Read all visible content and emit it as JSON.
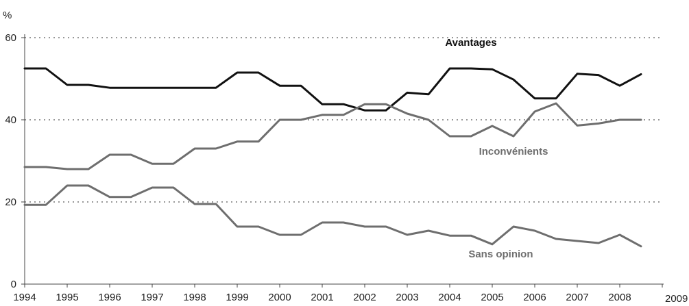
{
  "chart_data": {
    "type": "line",
    "y_unit_label": "%",
    "ylim": [
      0,
      60
    ],
    "y_ticks": [
      0,
      20,
      40,
      60
    ],
    "xlim": [
      1994,
      2009
    ],
    "x_tick_labels": [
      "1994",
      "1995",
      "1996",
      "1997",
      "1998",
      "1999",
      "2000",
      "2001",
      "2002",
      "2003",
      "2004",
      "2005",
      "2006",
      "2007",
      "2008",
      "2009"
    ],
    "grid": "horizontal dotted",
    "series": [
      {
        "name": "Avantages",
        "color": "#111111",
        "x": [
          1994,
          1994.5,
          1995,
          1995.5,
          1996,
          1996.5,
          1997,
          1997.5,
          1998,
          1998.5,
          1999,
          1999.5,
          2000,
          2000.5,
          2001,
          2001.5,
          2002,
          2002.5,
          2003,
          2003.5,
          2004,
          2004.5,
          2005,
          2005.5,
          2006,
          2006.5,
          2007,
          2007.5,
          2008,
          2008.5
        ],
        "values": [
          52.5,
          52.5,
          48.5,
          48.5,
          47.8,
          47.8,
          47.8,
          47.8,
          47.8,
          47.8,
          51.5,
          51.5,
          48.3,
          48.3,
          43.8,
          43.8,
          42.3,
          42.3,
          46.6,
          46.2,
          52.5,
          52.5,
          52.3,
          49.8,
          45.2,
          45.2,
          51.2,
          50.9,
          48.3,
          51.1
        ]
      },
      {
        "name": "Inconvénients",
        "color": "#6e6e6e",
        "x": [
          1994,
          1994.5,
          1995,
          1995.5,
          1996,
          1996.5,
          1997,
          1997.5,
          1998,
          1998.5,
          1999,
          1999.5,
          2000,
          2000.5,
          2001,
          2001.5,
          2002,
          2002.5,
          2003,
          2003.5,
          2004,
          2004.5,
          2005,
          2005.5,
          2006,
          2006.5,
          2007,
          2007.5,
          2008,
          2008.5
        ],
        "values": [
          28.5,
          28.5,
          28.0,
          28.0,
          31.5,
          31.5,
          29.3,
          29.3,
          33.0,
          33.0,
          34.7,
          34.7,
          40.0,
          40.0,
          41.2,
          41.2,
          43.8,
          43.8,
          41.5,
          40.0,
          36.0,
          36.0,
          38.5,
          36.0,
          42.0,
          44.0,
          38.6,
          39.1,
          40.0,
          40.0
        ]
      },
      {
        "name": "Sans opinion",
        "color": "#6e6e6e",
        "x": [
          1994,
          1994.5,
          1995,
          1995.5,
          1996,
          1996.5,
          1997,
          1997.5,
          1998,
          1998.5,
          1999,
          1999.5,
          2000,
          2000.5,
          2001,
          2001.5,
          2002,
          2002.5,
          2003,
          2003.5,
          2004,
          2004.5,
          2005,
          2005.5,
          2006,
          2006.5,
          2007,
          2007.5,
          2008,
          2008.5
        ],
        "values": [
          19.3,
          19.3,
          24.0,
          24.0,
          21.2,
          21.2,
          23.5,
          23.5,
          19.5,
          19.5,
          14.0,
          14.0,
          12.0,
          12.0,
          15.0,
          15.0,
          14.0,
          14.0,
          12.0,
          13.0,
          11.8,
          11.8,
          9.7,
          14.0,
          13.0,
          11.0,
          10.5,
          10.0,
          12.0,
          9.2
        ]
      }
    ]
  }
}
